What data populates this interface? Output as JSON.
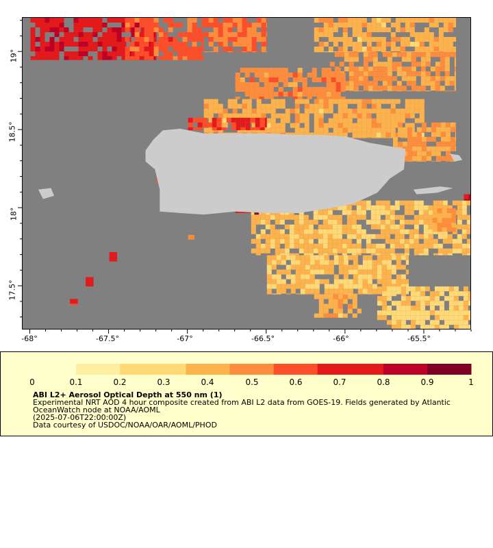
{
  "map": {
    "lat_labels": [
      "19°",
      "18.5°",
      "18°",
      "17.5°"
    ],
    "lon_labels": [
      "-68°",
      "-67.5°",
      "-67°",
      "-66.5°",
      "-66°",
      "-65.5°"
    ],
    "lat_values": [
      19,
      18.5,
      18,
      17.5
    ],
    "lon_values": [
      -68,
      -67.5,
      -67,
      -66.5,
      -66,
      -65.5
    ],
    "lon_range": [
      -68.05,
      -65.2
    ],
    "lat_range": [
      17.22,
      19.22
    ],
    "ocean_color": "#808080",
    "land_color": "#cccccc",
    "land_labels": []
  },
  "legend": {
    "ticks": [
      "0",
      "0.1",
      "0.2",
      "0.3",
      "0.4",
      "0.5",
      "0.6",
      "0.7",
      "0.8",
      "0.9",
      "1"
    ],
    "colors": [
      "#ffffcc",
      "#ffeda0",
      "#fed976",
      "#feb24c",
      "#fd8d3c",
      "#fc4e2a",
      "#e31a1c",
      "#bd0026",
      "#800026"
    ],
    "title": "ABI L2+ Aerosol Optical Depth at 550 nm (1)",
    "line1": "Experimental NRT AOD 4 hour composite created from ABI L2 data from GOES-19. Fields generated by Atlantic OceanWatch node at NOAA/AOML",
    "line2": "(2025-07-06T22:00:00Z)",
    "line3": "Data courtesy of USDOC/NOAA/OAR/AOML/PHOD"
  },
  "chart_data": {
    "type": "heatmap",
    "title": "ABI L2+ Aerosol Optical Depth at 550 nm (1)",
    "xlabel": "",
    "ylabel": "",
    "xlim": [
      -68.05,
      -65.2
    ],
    "ylim": [
      17.22,
      19.22
    ],
    "value_range": [
      0,
      1
    ],
    "aod_regions": [
      {
        "lon": [
          -68.0,
          -67.2
        ],
        "lat": [
          18.95,
          19.22
        ],
        "aod": 0.75
      },
      {
        "lon": [
          -67.4,
          -66.9
        ],
        "lat": [
          18.95,
          19.22
        ],
        "aod": 0.6
      },
      {
        "lon": [
          -66.9,
          -66.5
        ],
        "lat": [
          19.0,
          19.22
        ],
        "aod": 0.55
      },
      {
        "lon": [
          -66.2,
          -65.3
        ],
        "lat": [
          19.0,
          19.22
        ],
        "aod": 0.4
      },
      {
        "lon": [
          -66.1,
          -65.3
        ],
        "lat": [
          18.75,
          19.0
        ],
        "aod": 0.45
      },
      {
        "lon": [
          -66.7,
          -66.0
        ],
        "lat": [
          18.7,
          18.9
        ],
        "aod": 0.5
      },
      {
        "lon": [
          -66.9,
          -65.5
        ],
        "lat": [
          18.45,
          18.7
        ],
        "aod": 0.4
      },
      {
        "lon": [
          -67.0,
          -66.5
        ],
        "lat": [
          18.5,
          18.58
        ],
        "aod": 0.65
      },
      {
        "lon": [
          -65.7,
          -65.3
        ],
        "lat": [
          18.3,
          18.55
        ],
        "aod": 0.45
      },
      {
        "lon": [
          -66.6,
          -65.2
        ],
        "lat": [
          17.7,
          18.05
        ],
        "aod": 0.35
      },
      {
        "lon": [
          -66.5,
          -65.6
        ],
        "lat": [
          17.45,
          17.7
        ],
        "aod": 0.35
      },
      {
        "lon": [
          -66.2,
          -65.9
        ],
        "lat": [
          17.3,
          17.45
        ],
        "aod": 0.4
      },
      {
        "lon": [
          -65.8,
          -65.2
        ],
        "lat": [
          17.22,
          17.5
        ],
        "aod": 0.3
      },
      {
        "lon": [
          -65.45,
          -65.3
        ],
        "lat": [
          17.85,
          18.0
        ],
        "aod": 0.45
      },
      {
        "lon": [
          -66.7,
          -66.6
        ],
        "lat": [
          17.97,
          18.01
        ],
        "aod": 0.75
      },
      {
        "lon": [
          -66.58,
          -66.55
        ],
        "lat": [
          17.96,
          18.0
        ],
        "aod": 0.95
      },
      {
        "lon": [
          -65.25,
          -65.2
        ],
        "lat": [
          18.05,
          18.09
        ],
        "aod": 0.8
      },
      {
        "lon": [
          -67.65,
          -67.6
        ],
        "lat": [
          17.5,
          17.56
        ],
        "aod": 0.75
      },
      {
        "lon": [
          -67.5,
          -67.45
        ],
        "lat": [
          17.66,
          17.72
        ],
        "aod": 0.7
      },
      {
        "lon": [
          -67.75,
          -67.7
        ],
        "lat": [
          17.38,
          17.42
        ],
        "aod": 0.65
      },
      {
        "lon": [
          -67.2,
          -67.15
        ],
        "lat": [
          18.17,
          18.2
        ],
        "aod": 0.7
      },
      {
        "lon": [
          -67.0,
          -66.96
        ],
        "lat": [
          17.8,
          17.83
        ],
        "aod": 0.55
      }
    ]
  }
}
